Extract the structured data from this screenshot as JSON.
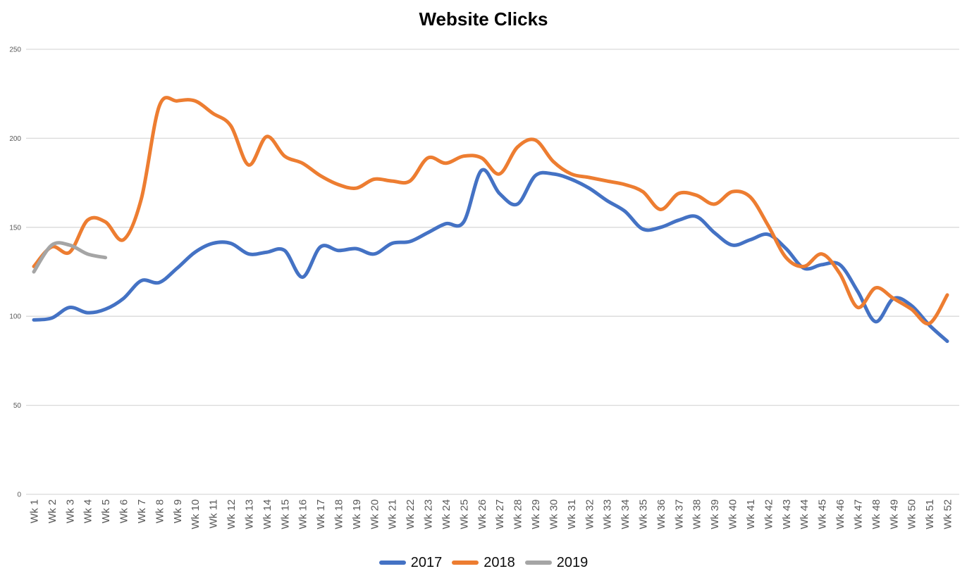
{
  "chart_data": {
    "type": "line",
    "title": "Website Clicks",
    "line_style": "smooth",
    "grid": "horizontal",
    "legend_position": "bottom",
    "xlabel": "",
    "ylabel": "",
    "ylim": [
      0,
      250
    ],
    "y_ticks": [
      "0",
      "50",
      "100",
      "150",
      "200",
      "250"
    ],
    "x_categories": [
      "Wk 1",
      "Wk 2",
      "Wk 3",
      "Wk 4",
      "Wk 5",
      "Wk 6",
      "Wk 7",
      "Wk 8",
      "Wk 9",
      "Wk 10",
      "Wk 11",
      "Wk 12",
      "Wk 13",
      "Wk 14",
      "Wk 15",
      "Wk 16",
      "Wk 17",
      "Wk 18",
      "Wk 19",
      "Wk 20",
      "Wk 21",
      "Wk 22",
      "Wk 23",
      "Wk 24",
      "Wk 25",
      "Wk 26",
      "Wk 27",
      "Wk 28",
      "Wk 29",
      "Wk 30",
      "Wk 31",
      "Wk 32",
      "Wk 33",
      "Wk 34",
      "Wk 35",
      "Wk 36",
      "Wk 37",
      "Wk 38",
      "Wk 39",
      "Wk 40",
      "Wk 41",
      "Wk 42",
      "Wk 43",
      "Wk 44",
      "Wk 45",
      "Wk 46",
      "Wk 47",
      "Wk 48",
      "Wk 49",
      "Wk 50",
      "Wk 51",
      "Wk 52"
    ],
    "series": [
      {
        "name": "2017",
        "color": "#4472C4",
        "values": [
          98,
          99,
          105,
          102,
          104,
          110,
          120,
          119,
          127,
          136,
          141,
          141,
          135,
          136,
          137,
          122,
          139,
          137,
          138,
          135,
          141,
          142,
          147,
          152,
          153,
          182,
          169,
          163,
          179,
          180,
          177,
          172,
          165,
          159,
          149,
          150,
          154,
          156,
          147,
          140,
          143,
          146,
          138,
          127,
          129,
          129,
          114,
          97,
          110,
          106,
          95,
          86
        ]
      },
      {
        "name": "2018",
        "color": "#ED7D31",
        "values": [
          128,
          139,
          136,
          154,
          153,
          143,
          166,
          218,
          221,
          221,
          214,
          207,
          185,
          201,
          190,
          186,
          179,
          174,
          172,
          177,
          176,
          176,
          189,
          186,
          190,
          189,
          180,
          195,
          199,
          187,
          180,
          178,
          176,
          174,
          170,
          160,
          169,
          168,
          163,
          170,
          167,
          151,
          133,
          128,
          135,
          124,
          105,
          116,
          110,
          104,
          96,
          112
        ]
      },
      {
        "name": "2019",
        "color": "#A5A5A5",
        "values": [
          125,
          140,
          140,
          135,
          133
        ]
      }
    ],
    "style": {
      "gridline_color": "#D9D9D9",
      "axis_line_color": "#D9D9D9",
      "axis_label_color": "#595959",
      "title_color": "#000000",
      "legend_text_color": "#0d0d0d",
      "background": "#FFFFFF"
    }
  }
}
